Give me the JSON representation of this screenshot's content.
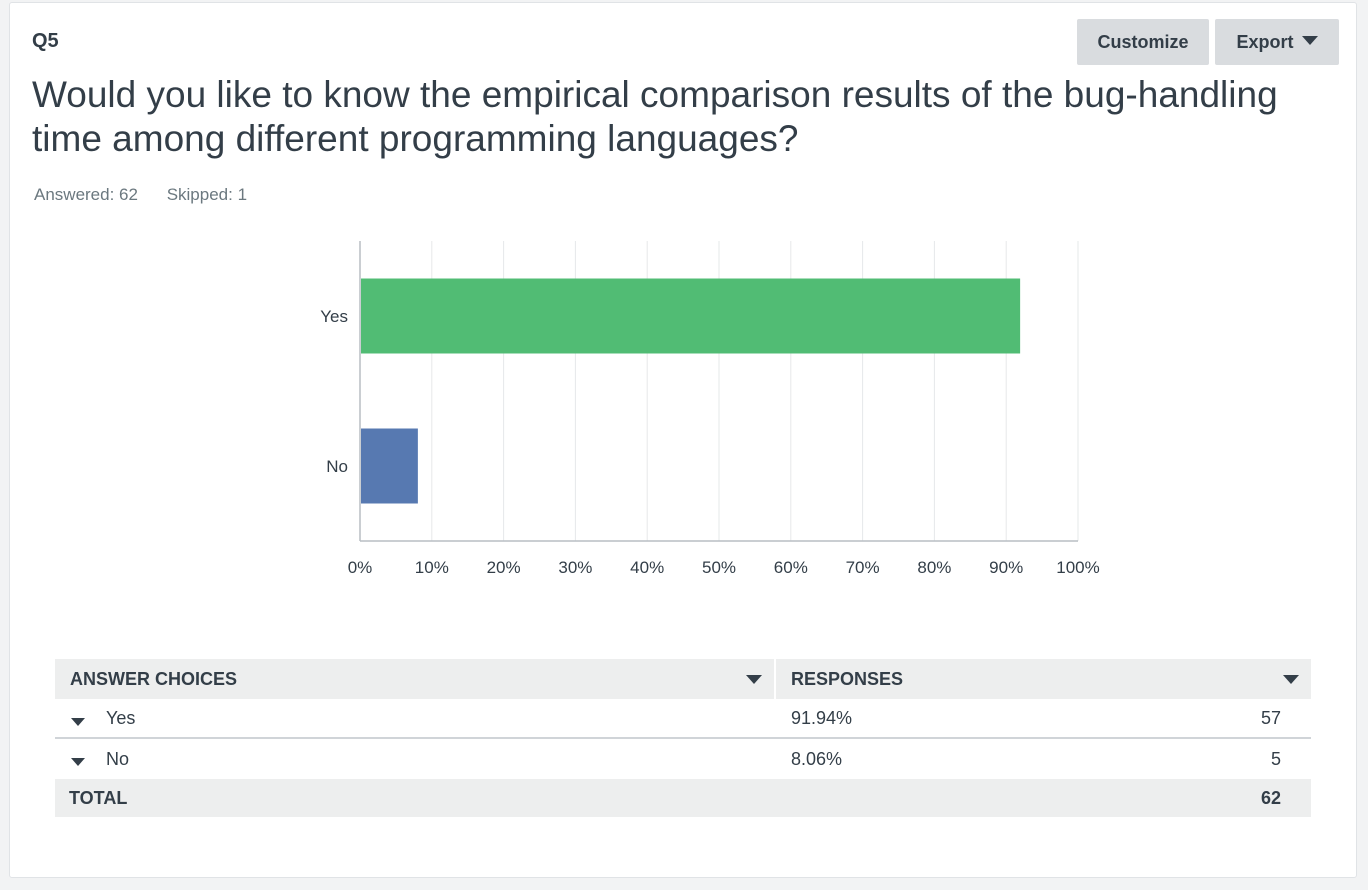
{
  "question": {
    "number": "Q5",
    "title": "Would you like to know the empirical comparison results of the bug-handling time among different programming languages?",
    "answered": "Answered: 62",
    "skipped": "Skipped: 1"
  },
  "toolbar": {
    "customize_label": "Customize",
    "export_label": "Export"
  },
  "chart_data": {
    "type": "bar",
    "orientation": "horizontal",
    "categories": [
      "Yes",
      "No"
    ],
    "values": [
      91.94,
      8.06
    ],
    "colors": [
      "#51bc74",
      "#5779b1"
    ],
    "xlim": [
      0,
      100
    ],
    "ticks": [
      "0%",
      "10%",
      "20%",
      "30%",
      "40%",
      "50%",
      "60%",
      "70%",
      "80%",
      "90%",
      "100%"
    ],
    "grid": true
  },
  "table": {
    "headers": [
      "ANSWER CHOICES",
      "RESPONSES"
    ],
    "rows": [
      {
        "choice": "Yes",
        "percent": "91.94%",
        "count": "57"
      },
      {
        "choice": "No",
        "percent": "8.06%",
        "count": "5"
      }
    ],
    "total_label": "TOTAL",
    "total_count": "62"
  }
}
